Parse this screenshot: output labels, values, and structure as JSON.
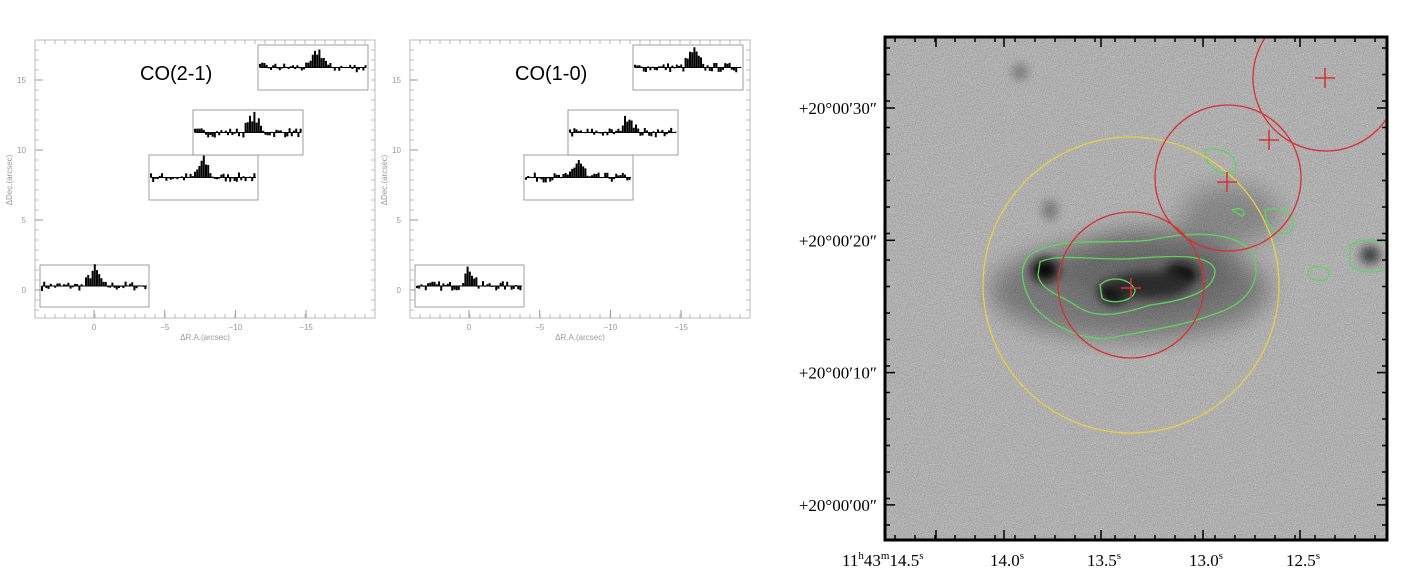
{
  "panels": [
    {
      "title": "CO(2-1)",
      "x_axis": {
        "label": "ΔR.A.(arcsec)",
        "ticks": [
          "0",
          "−5",
          "−10",
          "−15"
        ]
      },
      "y_axis": {
        "label": "ΔDec.(arcsec)",
        "ticks": [
          "0",
          "5",
          "10",
          "15"
        ]
      }
    },
    {
      "title": "CO(1-0)",
      "x_axis": {
        "label": "ΔR.A.(arcsec)",
        "ticks": [
          "0",
          "−5",
          "−10",
          "−15"
        ]
      },
      "y_axis": {
        "label": "ΔDec.(arcsec)",
        "ticks": [
          "0",
          "5",
          "10",
          "15"
        ]
      }
    }
  ],
  "image": {
    "y_ticks": [
      "+20°00′30″",
      "+20°00′20″",
      "+20°00′10″",
      "+20°00′00″"
    ],
    "x_ticks": [
      [
        "11",
        "h",
        "43",
        "m",
        "14.5",
        "s"
      ],
      [
        "14.0",
        "s"
      ],
      [
        "13.5",
        "s"
      ],
      [
        "13.0",
        "s"
      ],
      [
        "12.5",
        "s"
      ]
    ]
  }
}
